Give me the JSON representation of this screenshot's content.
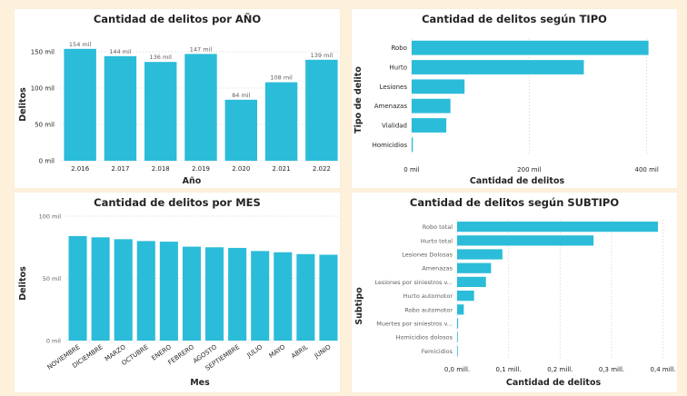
{
  "chart_data": [
    {
      "type": "bar",
      "title": "Cantidad de delitos por AÑO",
      "xlabel": "Año",
      "ylabel": "Delitos",
      "categories": [
        "2.016",
        "2.017",
        "2.018",
        "2.019",
        "2.020",
        "2.021",
        "2.022"
      ],
      "values": [
        154000,
        144000,
        136000,
        147000,
        84000,
        108000,
        139000
      ],
      "data_labels": [
        "154 mil",
        "144 mil",
        "136 mil",
        "147 mil",
        "84 mil",
        "108 mil",
        "139 mil"
      ],
      "ylim": [
        0,
        160000
      ],
      "yticks": [
        0,
        50000,
        100000,
        150000
      ],
      "ytick_labels": [
        "0 mil",
        "50 mil",
        "100 mil",
        "150 mil"
      ],
      "color": "#2bbcd9"
    },
    {
      "type": "bar",
      "orientation": "horizontal",
      "title": "Cantidad de delitos según TIPO",
      "xlabel": "Cantidad de delitos",
      "ylabel": "Tipo de delito",
      "categories": [
        "Robo",
        "Hurto",
        "Lesiones",
        "Amenazas",
        "Vialidad",
        "Homicidios"
      ],
      "values": [
        403000,
        293000,
        90000,
        66000,
        59000,
        2000
      ],
      "xlim": [
        0,
        450000
      ],
      "xticks": [
        0,
        200000,
        400000
      ],
      "xtick_labels": [
        "0 mil",
        "200 mil",
        "400 mil"
      ],
      "color": "#2bbcd9"
    },
    {
      "type": "bar",
      "title": "Cantidad de delitos por MES",
      "xlabel": "Mes",
      "ylabel": "Delitos",
      "categories": [
        "NOVIEMBRE",
        "DICIEMBRE",
        "MARZO",
        "OCTUBRE",
        "ENERO",
        "FEBRERO",
        "AGOSTO",
        "SEPTIEMBRE",
        "JULIO",
        "MAYO",
        "ABRIL",
        "JUNIO"
      ],
      "values": [
        84000,
        83000,
        81500,
        80000,
        79500,
        75500,
        75000,
        74500,
        72000,
        71000,
        69500,
        69000
      ],
      "ylim": [
        0,
        100000
      ],
      "yticks": [
        0,
        50000,
        100000
      ],
      "ytick_labels": [
        "0 mil",
        "50 mil",
        "100 mil"
      ],
      "color": "#2bbcd9"
    },
    {
      "type": "bar",
      "orientation": "horizontal",
      "title": "Cantidad de delitos según SUBTIPO",
      "xlabel": "Cantidad de delitos",
      "ylabel": "Subtipo",
      "categories": [
        "Robo total",
        "Hurto total",
        "Lesiones Dolosas",
        "Amenazas",
        "Lesiones por siniestros v...",
        "Hurto automotor",
        "Robo automotor",
        "Muertes por siniestros v...",
        "Homicidios dolosos",
        "Femicidios"
      ],
      "values": [
        390000,
        265000,
        88000,
        66000,
        56000,
        33000,
        13000,
        2000,
        1200,
        300
      ],
      "xlim": [
        0,
        420000
      ],
      "xticks": [
        0,
        100000,
        200000,
        300000,
        400000
      ],
      "xtick_labels": [
        "0,0 mill.",
        "0,1 mill.",
        "0,2 mill.",
        "0,3 mill.",
        "0,4 mill."
      ],
      "color": "#2bbcd9"
    }
  ]
}
